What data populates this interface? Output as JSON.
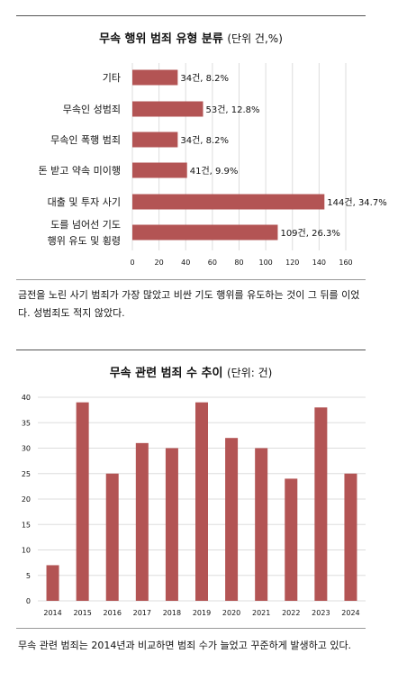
{
  "charts": [
    {
      "title": "무속 행위 범죄 유형 분류",
      "unit": "(단위 건,%)",
      "caption": "금전을 노린 사기 범죄가 가장 많았고 비싼 기도 행위를 유도하는 것이 그 뒤를 이었다. 성범죄도 적지 않았다."
    },
    {
      "title": "무속 관련 범죄 수 추이",
      "unit": "(단위: 건)",
      "caption": "무속 관련 범죄는 2014년과 비교하면 범죄 수가 늘었고 꾸준하게 발생하고 있다."
    }
  ],
  "chart_data": [
    {
      "type": "bar",
      "orientation": "horizontal",
      "title": "무속 행위 범죄 유형 분류 (단위 건,%)",
      "categories": [
        [
          "기타"
        ],
        [
          "무속인 성범죄"
        ],
        [
          "무속인 폭행 범죄"
        ],
        [
          "돈 받고 약속 미이행"
        ],
        [
          "대출 및 투자 사기"
        ],
        [
          "도를 넘어선 기도",
          "행위 유도 및 횡령"
        ]
      ],
      "values": [
        34,
        53,
        34,
        41,
        144,
        109
      ],
      "data_labels": [
        "34건, 8.2%",
        "53건, 12.8%",
        "34건, 8.2%",
        "41건, 9.9%",
        "144건, 34.7%",
        "109건, 26.3%"
      ],
      "xlim": [
        0,
        160
      ],
      "xticks": [
        0,
        20,
        40,
        60,
        80,
        100,
        120,
        140,
        160
      ],
      "grid": true,
      "bar_color": "#b35454"
    },
    {
      "type": "bar",
      "orientation": "vertical",
      "title": "무속 관련 범죄 수 추이 (단위: 건)",
      "categories": [
        "2014",
        "2015",
        "2016",
        "2017",
        "2018",
        "2019",
        "2020",
        "2021",
        "2022",
        "2023",
        "2024"
      ],
      "values": [
        7,
        39,
        25,
        31,
        30,
        39,
        32,
        30,
        24,
        38,
        25
      ],
      "ylim": [
        0,
        40
      ],
      "yticks": [
        0,
        5,
        10,
        15,
        20,
        25,
        30,
        35,
        40
      ],
      "grid": true,
      "bar_color": "#b35454"
    }
  ]
}
